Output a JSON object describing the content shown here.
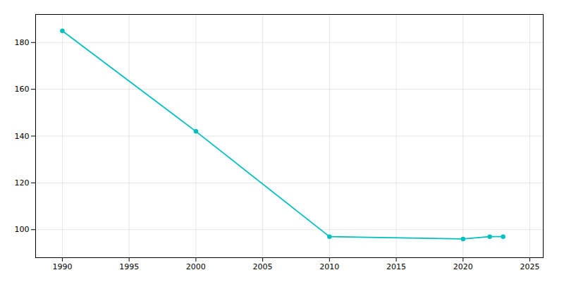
{
  "chart_data": {
    "type": "line",
    "x": [
      1990,
      2000,
      2010,
      2020,
      2022,
      2023
    ],
    "values": [
      185,
      142,
      97,
      96,
      97,
      97
    ],
    "color": "#00BFBF",
    "marker": "circle",
    "xlim": [
      1988,
      2026
    ],
    "ylim": [
      88,
      192
    ],
    "xticks": [
      1990,
      1995,
      2000,
      2005,
      2010,
      2015,
      2020,
      2025
    ],
    "yticks": [
      100,
      120,
      140,
      160,
      180
    ],
    "grid": true
  }
}
